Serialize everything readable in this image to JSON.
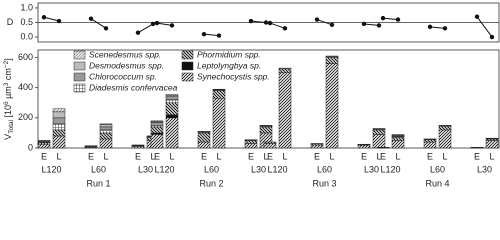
{
  "chart_data": [
    {
      "type": "line",
      "ylabel": "D",
      "ylim": [
        -0.17,
        1.17
      ],
      "yticks": [
        {
          "value": 0,
          "label": "0.0"
        },
        {
          "value": 0.5,
          "label": "0.5"
        },
        {
          "value": 1,
          "label": "1.0"
        }
      ],
      "hline": 0.5,
      "color": "#111",
      "values": [
        0.68,
        0.55,
        0.63,
        0.3,
        0.15,
        0.45,
        0.48,
        0.4,
        0.1,
        0.05,
        0.55,
        0.5,
        0.48,
        0.3,
        0.6,
        0.42,
        0.45,
        0.4,
        0.65,
        0.6,
        0.35,
        0.3,
        0.7,
        0.0
      ]
    },
    {
      "type": "bar",
      "stacked": true,
      "ylabel": [
        {
          "text": "V"
        },
        {
          "text": "Total",
          "shift": "sub"
        },
        {
          "text": " [10"
        },
        {
          "text": "6",
          "shift": "super"
        },
        {
          "text": " µm"
        },
        {
          "text": "3",
          "shift": "super"
        },
        {
          "text": " cm"
        },
        {
          "text": "−2",
          "shift": "super"
        },
        {
          "text": "]"
        }
      ],
      "ylim": [
        0,
        650
      ],
      "yticks": [
        0,
        200,
        400,
        600
      ],
      "categories": [
        "E",
        "L",
        "E",
        "L",
        "E",
        "L",
        "E",
        "L",
        "E",
        "L",
        "E",
        "L",
        "E",
        "L",
        "E",
        "L",
        "E",
        "L",
        "E",
        "L",
        "E",
        "L",
        "E",
        "L"
      ],
      "groups": [
        "L120",
        "L60",
        "L30",
        "L120",
        "L60",
        "L30",
        "L120",
        "L60",
        "L30",
        "L120",
        "L60",
        "L30"
      ],
      "runs": [
        "Run 1",
        "Run 2",
        "Run 3",
        "Run 4"
      ],
      "series": [
        {
          "name": "Synechocystis spp.",
          "color": "#111",
          "pattern": "diag",
          "values": [
            25,
            80,
            5,
            60,
            10,
            50,
            90,
            200,
            40,
            330,
            30,
            100,
            30,
            500,
            20,
            560,
            15,
            90,
            2,
            50,
            40,
            120,
            2,
            50
          ]
        },
        {
          "name": "Leptolyngbya sp.",
          "color": "#111",
          "pattern": "dense",
          "values": [
            0,
            0,
            0,
            0,
            0,
            0,
            10,
            20,
            0,
            0,
            0,
            0,
            0,
            0,
            0,
            0,
            0,
            0,
            0,
            0,
            0,
            0,
            0,
            0
          ]
        },
        {
          "name": "Phormidium spp.",
          "color": "#111",
          "pattern": "back",
          "values": [
            10,
            40,
            5,
            40,
            5,
            20,
            40,
            80,
            60,
            50,
            20,
            40,
            10,
            25,
            8,
            40,
            8,
            30,
            2,
            20,
            15,
            25,
            2,
            10
          ]
        },
        {
          "name": "Diadesmis confervacea",
          "color": "#555",
          "pattern": "grid",
          "values": [
            5,
            40,
            2,
            20,
            2,
            5,
            10,
            20,
            5,
            5,
            2,
            5,
            0,
            5,
            2,
            5,
            1,
            5,
            0,
            5,
            2,
            2,
            0,
            2
          ]
        },
        {
          "name": "Chlorococcum sp.",
          "color": "#999",
          "pattern": "solid",
          "values": [
            5,
            40,
            1,
            20,
            1,
            3,
            20,
            20,
            3,
            3,
            1,
            3,
            0,
            0,
            0,
            5,
            1,
            3,
            1,
            5,
            2,
            2,
            1,
            2
          ]
        },
        {
          "name": "Desmodesmus spp.",
          "color": "#bbb",
          "pattern": "solid",
          "values": [
            3,
            40,
            1,
            15,
            1,
            1,
            5,
            10,
            1,
            1,
            1,
            1,
            0,
            0,
            0,
            0,
            0,
            1,
            0,
            5,
            1,
            1,
            0,
            1
          ]
        },
        {
          "name": "Scenedesmus spp.",
          "color": "#888",
          "pattern": "diag",
          "values": [
            2,
            20,
            1,
            5,
            1,
            1,
            5,
            5,
            1,
            1,
            1,
            1,
            0,
            0,
            0,
            0,
            0,
            0,
            0,
            5,
            0,
            0,
            0,
            0
          ]
        }
      ]
    }
  ]
}
